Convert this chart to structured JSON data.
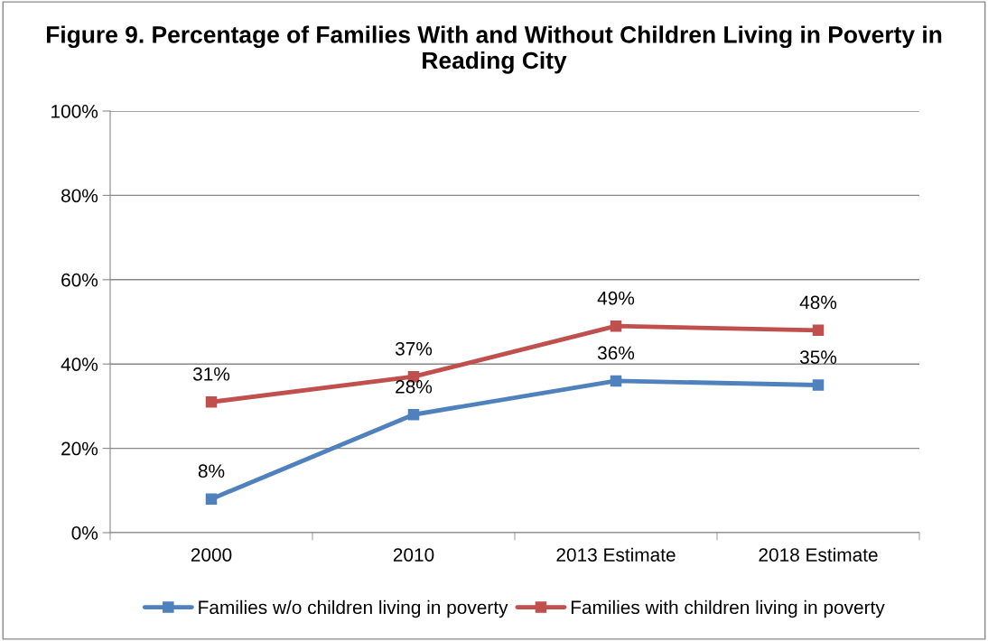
{
  "chart_data": {
    "type": "line",
    "title": "Figure 9. Percentage of Families With and Without Children Living in Poverty in Reading City",
    "categories": [
      "2000",
      "2010",
      "2013 Estimate",
      "2018 Estimate"
    ],
    "series": [
      {
        "name": "Families w/o children living in poverty",
        "color": "#4f81bd",
        "values": [
          8,
          28,
          36,
          35
        ],
        "value_labels": [
          "8%",
          "28%",
          "36%",
          "35%"
        ]
      },
      {
        "name": "Families with children living in poverty",
        "color": "#c0504d",
        "values": [
          31,
          37,
          49,
          48
        ],
        "value_labels": [
          "31%",
          "37%",
          "49%",
          "48%"
        ]
      }
    ],
    "ylim": [
      0,
      100
    ],
    "yticks": [
      {
        "value": 0,
        "label": "0%"
      },
      {
        "value": 20,
        "label": "20%"
      },
      {
        "value": 40,
        "label": "40%"
      },
      {
        "value": 60,
        "label": "60%"
      },
      {
        "value": 80,
        "label": "80%"
      },
      {
        "value": 100,
        "label": "100%"
      }
    ],
    "grid": "y",
    "legend": "bottom",
    "marker": "square",
    "line_style": "solid"
  }
}
